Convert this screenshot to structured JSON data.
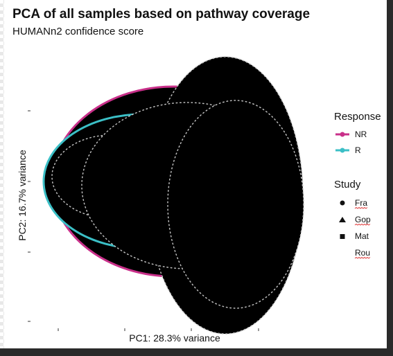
{
  "chart_data": {
    "type": "scatter",
    "title": "PCA of all samples based on pathway coverage",
    "subtitle": "HUMANn2 confidence score",
    "xlabel": "PC1: 28.3% variance",
    "ylabel": "PC2: 16.7% variance",
    "x_tick_count": 4,
    "y_tick_count": 4,
    "grid": false,
    "legend_position": "right",
    "legend": {
      "response": {
        "title": "Response",
        "entries": [
          {
            "label": "NR",
            "color": "#c9308a"
          },
          {
            "label": "R",
            "color": "#3bbfc6"
          }
        ]
      },
      "study": {
        "title": "Study",
        "entries": [
          {
            "label": "Fra",
            "shape": "circle"
          },
          {
            "label": "Gop",
            "shape": "triangle"
          },
          {
            "label": "Mat",
            "shape": "square"
          },
          {
            "label": "Rou",
            "shape": "none"
          }
        ]
      }
    },
    "series": [
      {
        "name": "NR",
        "color": "#c9308a",
        "ellipse": "solid"
      },
      {
        "name": "R",
        "color": "#3bbfc6",
        "ellipse": "solid"
      },
      {
        "name": "Fra",
        "color": "#000000",
        "ellipse": "filled-dotted"
      },
      {
        "name": "Gop",
        "color": "#000000",
        "ellipse": "filled-dotted"
      },
      {
        "name": "Mat",
        "color": "#000000",
        "ellipse": "filled-dotted"
      },
      {
        "name": "Rou",
        "color": "#000000",
        "ellipse": "filled-dotted"
      }
    ]
  }
}
